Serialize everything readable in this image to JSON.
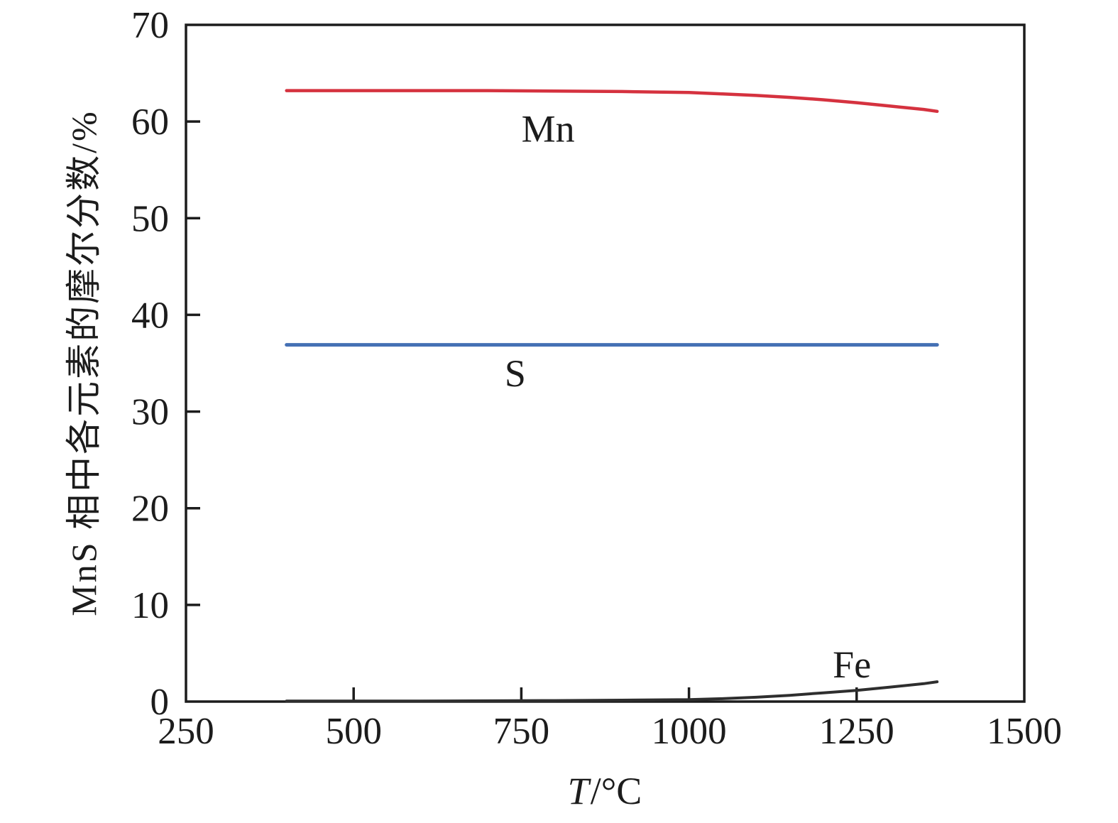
{
  "chart_data": {
    "type": "line",
    "title": "",
    "xlabel": "T/℃",
    "xlabel_italic": "T",
    "xlabel_rest": "/°C",
    "ylabel": "MnS 相中各元素的摩尔分数/%",
    "xlim": [
      250,
      1500
    ],
    "ylim": [
      0,
      70
    ],
    "x_ticks": [
      250,
      500,
      750,
      1000,
      1250,
      1500
    ],
    "y_ticks": [
      0,
      10,
      20,
      30,
      40,
      50,
      60,
      70
    ],
    "grid": false,
    "legend_position": "inline-annotations",
    "axis_color": "#1c1c1c",
    "background_color": "#ffffff",
    "series": [
      {
        "name": "Mn",
        "color": "#d5323f",
        "points": [
          [
            400,
            63.2
          ],
          [
            500,
            63.2
          ],
          [
            600,
            63.2
          ],
          [
            700,
            63.2
          ],
          [
            800,
            63.15
          ],
          [
            900,
            63.1
          ],
          [
            1000,
            63.0
          ],
          [
            1050,
            62.85
          ],
          [
            1100,
            62.7
          ],
          [
            1150,
            62.5
          ],
          [
            1200,
            62.25
          ],
          [
            1250,
            61.95
          ],
          [
            1300,
            61.6
          ],
          [
            1350,
            61.25
          ],
          [
            1370,
            61.05
          ]
        ]
      },
      {
        "name": "S",
        "color": "#4470b4",
        "points": [
          [
            400,
            36.9
          ],
          [
            600,
            36.9
          ],
          [
            800,
            36.9
          ],
          [
            1000,
            36.9
          ],
          [
            1200,
            36.9
          ],
          [
            1370,
            36.9
          ]
        ]
      },
      {
        "name": "Fe",
        "color": "#2e2e2e",
        "points": [
          [
            400,
            0.05
          ],
          [
            600,
            0.05
          ],
          [
            800,
            0.1
          ],
          [
            900,
            0.15
          ],
          [
            1000,
            0.2
          ],
          [
            1050,
            0.3
          ],
          [
            1100,
            0.45
          ],
          [
            1150,
            0.65
          ],
          [
            1200,
            0.9
          ],
          [
            1250,
            1.15
          ],
          [
            1300,
            1.5
          ],
          [
            1350,
            1.85
          ],
          [
            1370,
            2.05
          ]
        ]
      }
    ],
    "annotations": [
      {
        "text": "Mn",
        "t": 790,
        "v": 59.3
      },
      {
        "text": "S",
        "t": 741,
        "v": 34.0
      },
      {
        "text": "Fe",
        "t": 1243,
        "v": 3.9
      }
    ]
  }
}
